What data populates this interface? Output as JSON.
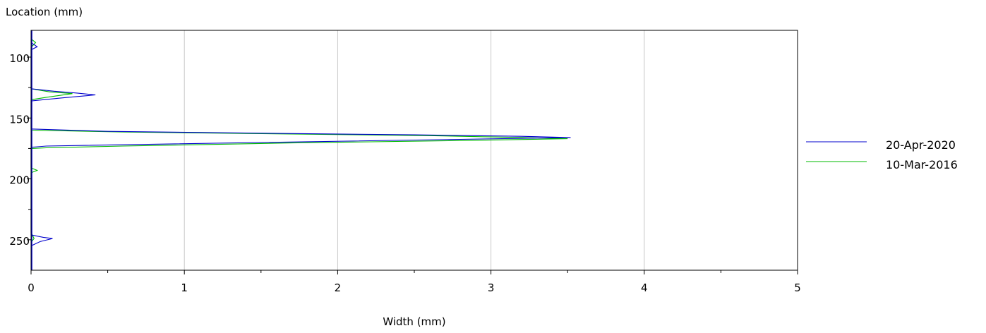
{
  "chart_data": {
    "type": "line",
    "title": "",
    "xlabel": "Width (mm)",
    "ylabel": "Location (mm)",
    "xlim": [
      0,
      5
    ],
    "ylim": [
      78,
      275
    ],
    "y_inverted": true,
    "x_ticks": [
      0,
      1,
      2,
      3,
      4,
      5
    ],
    "x_minor_ticks": [
      0.5,
      1.5,
      2.5,
      3.5,
      4.5
    ],
    "y_ticks": [
      100,
      150,
      200,
      250
    ],
    "y_minor_ticks": [
      125,
      175,
      225
    ],
    "grid": {
      "x": true,
      "y": false
    },
    "legend_position": "right",
    "series": [
      {
        "name": "20-Apr-2020",
        "color": "#0000cc",
        "points": [
          [
            0,
            88
          ],
          [
            0.04,
            91.5
          ],
          [
            0,
            94
          ],
          [
            0,
            126
          ],
          [
            0.15,
            128
          ],
          [
            0.3,
            129.5
          ],
          [
            0.42,
            131
          ],
          [
            0.2,
            133.5
          ],
          [
            0,
            136
          ],
          [
            0,
            159
          ],
          [
            0.5,
            161
          ],
          [
            1.5,
            162.5
          ],
          [
            2.5,
            163.8
          ],
          [
            3.2,
            165
          ],
          [
            3.52,
            166
          ],
          [
            2.8,
            167.5
          ],
          [
            1.8,
            169.5
          ],
          [
            0.8,
            171.5
          ],
          [
            0.1,
            173
          ],
          [
            0,
            174
          ],
          [
            0,
            246
          ],
          [
            0.08,
            248
          ],
          [
            0.14,
            249
          ],
          [
            0.06,
            251.5
          ],
          [
            0,
            255
          ]
        ]
      },
      {
        "name": "10-Mar-2016",
        "color": "#00bb00",
        "points": [
          [
            0,
            85
          ],
          [
            0.03,
            88
          ],
          [
            0,
            92
          ],
          [
            0,
            126
          ],
          [
            0.12,
            128.5
          ],
          [
            0.27,
            130
          ],
          [
            0.1,
            133
          ],
          [
            0,
            135
          ],
          [
            0,
            160
          ],
          [
            0.6,
            161.5
          ],
          [
            1.6,
            163
          ],
          [
            2.6,
            164.5
          ],
          [
            3.2,
            166
          ],
          [
            3.5,
            167
          ],
          [
            2.8,
            168.5
          ],
          [
            1.7,
            170.5
          ],
          [
            0.6,
            173
          ],
          [
            0.1,
            174.5
          ],
          [
            0,
            175
          ],
          [
            0,
            191
          ],
          [
            0.04,
            193
          ],
          [
            0,
            195
          ],
          [
            0,
            244
          ],
          [
            0.02,
            249
          ],
          [
            0,
            252
          ]
        ]
      }
    ]
  }
}
